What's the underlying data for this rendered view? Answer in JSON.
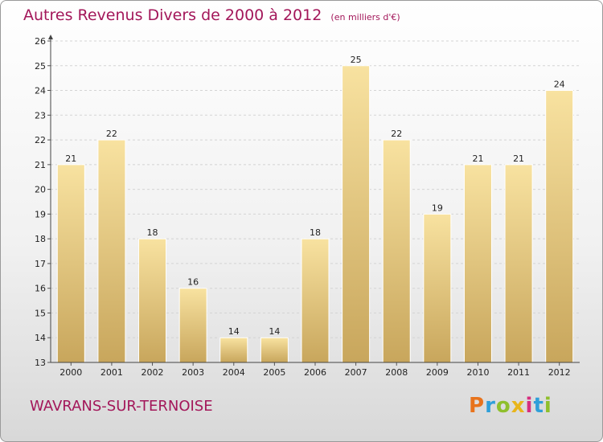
{
  "title": "Autres Revenus Divers de 2000 à 2012",
  "subtitle": "(en milliers d'€)",
  "commune": "WAVRANS-SUR-TERNOISE",
  "logo": {
    "letters": [
      "P",
      "r",
      "o",
      "x",
      "i",
      "t",
      "i"
    ],
    "colors": [
      "#e8731c",
      "#2f9fd9",
      "#8fbf2c",
      "#e8b51c",
      "#d62e7f",
      "#2f9fd9",
      "#8fbf2c"
    ]
  },
  "colors": {
    "bar_light": "#f8e2a0",
    "bar_dark": "#c8a65c",
    "title": "#a3175a"
  },
  "chart_data": {
    "type": "bar",
    "categories": [
      "2000",
      "2001",
      "2002",
      "2003",
      "2004",
      "2005",
      "2006",
      "2007",
      "2008",
      "2009",
      "2010",
      "2011",
      "2012"
    ],
    "values": [
      21,
      22,
      18,
      16,
      14,
      14,
      18,
      25,
      22,
      19,
      21,
      21,
      24
    ],
    "ylim": [
      13,
      26
    ],
    "yticks": [
      13,
      14,
      15,
      16,
      17,
      18,
      19,
      20,
      21,
      22,
      23,
      24,
      25,
      26
    ],
    "grid": true,
    "xlabel": "",
    "ylabel": ""
  }
}
